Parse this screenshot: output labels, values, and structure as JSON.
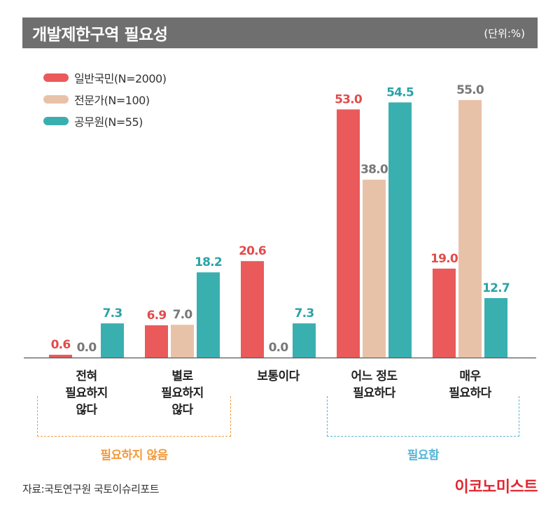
{
  "header": {
    "title": "개발제한구역 필요성",
    "unit": "(단위:%)"
  },
  "chart_data": {
    "type": "bar",
    "categories": [
      "전혀\n필요하지\n않다",
      "별로\n필요하지\n않다",
      "보통이다",
      "어느 정도\n필요하다",
      "매우\n필요하다"
    ],
    "series": [
      {
        "name": "일반국민(N=2000)",
        "color": "#ea5a5a",
        "values": [
          0.6,
          6.9,
          20.6,
          53.0,
          19.0
        ]
      },
      {
        "name": "전문가(N=100)",
        "color": "#e8c2a8",
        "values": [
          0.0,
          7.0,
          0.0,
          38.0,
          55.0
        ]
      },
      {
        "name": "공무원(N=55)",
        "color": "#3aafb0",
        "values": [
          7.3,
          18.2,
          7.3,
          54.5,
          12.7
        ]
      }
    ],
    "label_colors": {
      "일반국민(N=2000)": "#e24b4b",
      "전문가(N=100)": "#777777",
      "공무원(N=55)": "#2aa3a6"
    },
    "ylim": [
      0,
      60
    ]
  },
  "groups": [
    {
      "label": "필요하지 않음",
      "color": "#f39a3a"
    },
    {
      "label": "필요함",
      "color": "#58b6d8"
    }
  ],
  "footer": {
    "source": "자료:국토연구원 국토이슈리포트",
    "brand": "이코노미스트"
  }
}
